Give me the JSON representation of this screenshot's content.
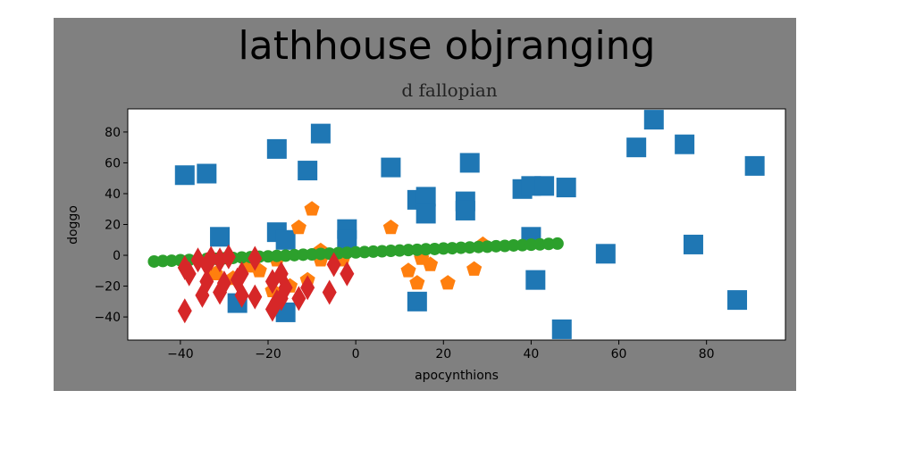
{
  "chart_data": {
    "type": "scatter",
    "title": "lathhouse objranging",
    "subtitle": "d fallopian",
    "xlabel": "apocynthions",
    "ylabel": "doggo",
    "xlim": [
      -52,
      98
    ],
    "ylim": [
      -55,
      95
    ],
    "xticks": [
      -40,
      -20,
      0,
      20,
      40,
      60,
      80
    ],
    "yticks": [
      -40,
      -20,
      0,
      20,
      40,
      60,
      80
    ],
    "grid": false,
    "legend": false,
    "series": [
      {
        "marker": "square",
        "color": "#1f77b4",
        "x": [
          -39,
          -34,
          -31,
          -27,
          -18,
          -18,
          -16,
          -16,
          -11,
          -8,
          -2,
          -2,
          8,
          14,
          14,
          16,
          16,
          25,
          25,
          26,
          38,
          40,
          40,
          41,
          43,
          48,
          47,
          57,
          64,
          68,
          75,
          77,
          87,
          91
        ],
        "y": [
          52,
          53,
          12,
          -31,
          69,
          15,
          10,
          -37,
          55,
          79,
          17,
          10,
          57,
          36,
          -30,
          38,
          27,
          35,
          29,
          60,
          43,
          45,
          12,
          -16,
          45,
          44,
          -48,
          1,
          70,
          88,
          72,
          7,
          -29,
          58
        ]
      },
      {
        "marker": "pentagon",
        "color": "#ff7f0e",
        "x": [
          -32,
          -28,
          -24,
          -18,
          -15,
          -13,
          -11,
          -10,
          -8,
          -8,
          -3,
          8,
          12,
          14,
          15,
          17,
          21,
          27,
          29,
          -22,
          -19
        ],
        "y": [
          -12,
          -15,
          -7,
          -3,
          -20,
          18,
          -16,
          30,
          3,
          -3,
          -3,
          18,
          -10,
          -18,
          -2,
          -6,
          -18,
          -9,
          7,
          -10,
          -23
        ]
      },
      {
        "marker": "circle",
        "color": "#2ca02c",
        "x": [
          -46,
          -44,
          -42,
          -40,
          -38,
          -36,
          -34,
          -32,
          -30,
          -28,
          -26,
          -24,
          -22,
          -20,
          -18,
          -16,
          -14,
          -12,
          -10,
          -8,
          -6,
          -4,
          -2,
          0,
          2,
          4,
          6,
          8,
          10,
          12,
          14,
          16,
          18,
          20,
          22,
          24,
          26,
          28,
          30,
          32,
          34,
          36,
          38,
          40,
          42,
          44,
          46
        ],
        "y": [
          -4,
          -3.7,
          -3.5,
          -3.2,
          -3,
          -2.7,
          -2.4,
          -2.2,
          -1.9,
          -1.7,
          -1.4,
          -1.2,
          -0.9,
          -0.7,
          -0.4,
          -0.2,
          0.1,
          0.4,
          0.6,
          0.9,
          1.1,
          1.4,
          1.6,
          1.9,
          2.1,
          2.4,
          2.6,
          2.9,
          3.1,
          3.4,
          3.6,
          3.9,
          4.1,
          4.4,
          4.6,
          4.9,
          5.1,
          5.4,
          5.6,
          5.9,
          6.1,
          6.4,
          6.6,
          6.9,
          7.1,
          7.4,
          7.6
        ]
      },
      {
        "marker": "diamond",
        "color": "#d62728",
        "x": [
          -39,
          -39,
          -38,
          -36,
          -35,
          -34,
          -34,
          -33,
          -31,
          -31,
          -30,
          -29,
          -27,
          -26,
          -26,
          -23,
          -23,
          -19,
          -19,
          -18,
          -17,
          -17,
          -16,
          -13,
          -11,
          -6,
          -5,
          -2
        ],
        "y": [
          -36,
          -8,
          -12,
          -3,
          -26,
          -6,
          -17,
          -2,
          -3,
          -24,
          -18,
          -1,
          -16,
          -12,
          -26,
          -2,
          -27,
          -17,
          -35,
          -30,
          -12,
          -28,
          -21,
          -28,
          -21,
          -24,
          -6,
          -12
        ]
      }
    ]
  }
}
